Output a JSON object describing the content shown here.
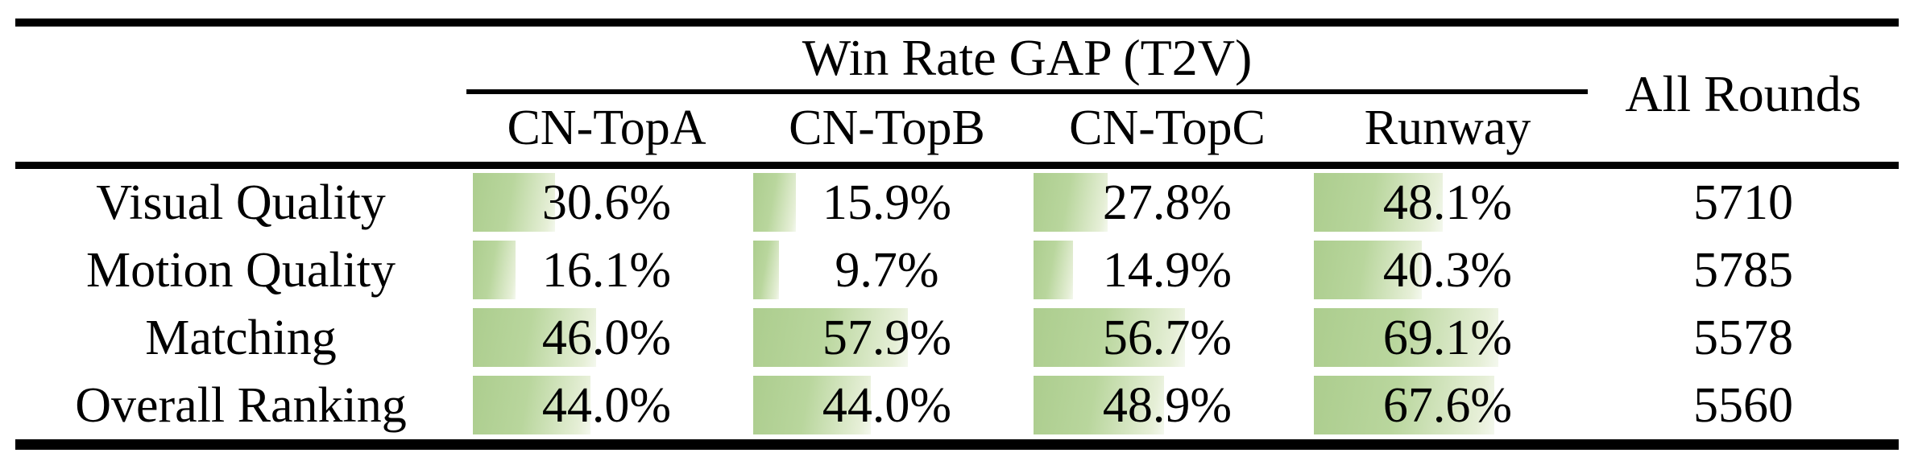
{
  "table": {
    "group_header": "Win Rate GAP (T2V)",
    "rounds_header": "All Rounds",
    "columns": [
      "CN-TopA",
      "CN-TopB",
      "CN-TopC",
      "Runway"
    ],
    "rows": [
      {
        "label": "Visual Quality",
        "display": [
          "30.6%",
          "15.9%",
          "27.8%",
          "48.1%"
        ],
        "values": [
          30.6,
          15.9,
          27.8,
          48.1
        ],
        "all_rounds": "5710"
      },
      {
        "label": "Motion Quality",
        "display": [
          "16.1%",
          "9.7%",
          "14.9%",
          "40.3%"
        ],
        "values": [
          16.1,
          9.7,
          14.9,
          40.3
        ],
        "all_rounds": "5785"
      },
      {
        "label": "Matching",
        "display": [
          "46.0%",
          "57.9%",
          "56.7%",
          "69.1%"
        ],
        "values": [
          46.0,
          57.9,
          56.7,
          69.1
        ],
        "all_rounds": "5578"
      },
      {
        "label": "Overall Ranking",
        "display": [
          "44.0%",
          "44.0%",
          "48.9%",
          "67.6%"
        ],
        "values": [
          44.0,
          44.0,
          48.9,
          67.6
        ],
        "all_rounds": "5560"
      }
    ]
  },
  "colors": {
    "rule": "#000000",
    "bar_dark": "#accd8e",
    "bar_main": "#b9d69d",
    "bar_light": "#e6efd7",
    "bar_faint": "#f4f8ee"
  },
  "chart_data": {
    "type": "table",
    "title": "Win Rate GAP (T2V)",
    "row_labels": [
      "Visual Quality",
      "Motion Quality",
      "Matching",
      "Overall Ranking"
    ],
    "columns": [
      "CN-TopA",
      "CN-TopB",
      "CN-TopC",
      "Runway",
      "All Rounds"
    ],
    "series": [
      {
        "name": "CN-TopA",
        "unit": "%",
        "values": [
          30.6,
          16.1,
          46.0,
          44.0
        ]
      },
      {
        "name": "CN-TopB",
        "unit": "%",
        "values": [
          15.9,
          9.7,
          57.9,
          44.0
        ]
      },
      {
        "name": "CN-TopC",
        "unit": "%",
        "values": [
          27.8,
          14.9,
          56.7,
          48.9
        ]
      },
      {
        "name": "Runway",
        "unit": "%",
        "values": [
          48.1,
          40.3,
          69.1,
          67.6
        ]
      },
      {
        "name": "All Rounds",
        "unit": "rounds",
        "values": [
          5710,
          5785,
          5578,
          5560
        ]
      }
    ],
    "layout": "percent cells contain green data bars whose width equals the percentage of the cell width (scale 0-100%), bars anchored to the left cell edge, grid off, booktabs-style horizontal rules only"
  }
}
